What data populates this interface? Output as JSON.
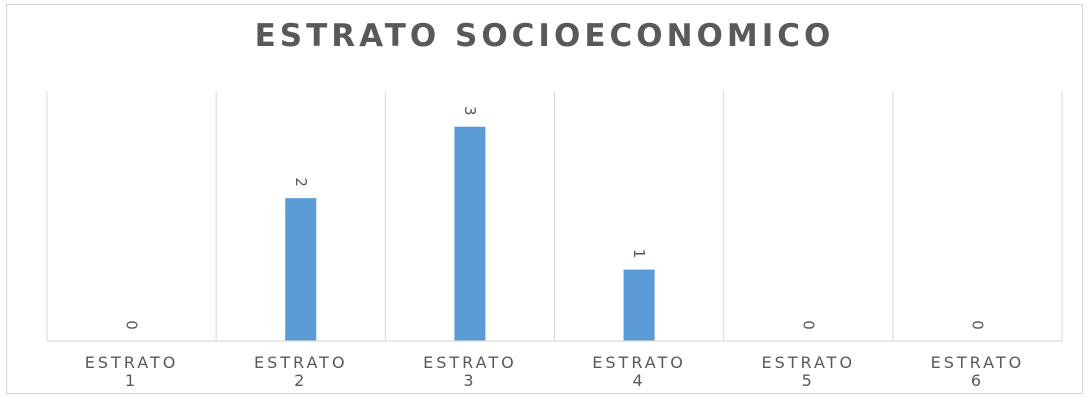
{
  "chart_data": {
    "type": "bar",
    "title": "ESTRATO  SOCIOECONOMICO",
    "categories": [
      [
        "ESTRATO",
        "1"
      ],
      [
        "ESTRATO",
        "2"
      ],
      [
        "ESTRATO",
        "3"
      ],
      [
        "ESTRATO",
        "4"
      ],
      [
        "ESTRATO",
        "5"
      ],
      [
        "ESTRATO",
        "6"
      ]
    ],
    "values": [
      0,
      2,
      3,
      1,
      0,
      0
    ],
    "data_labels": [
      "0",
      "2",
      "3",
      "1",
      "0",
      "0"
    ],
    "ylim": [
      0,
      3.5
    ],
    "grid": "vertical category separators",
    "bar_color": "#5b9bd5",
    "axis_color": "#d9d9d9",
    "text_color": "#595959",
    "legend": "none"
  }
}
